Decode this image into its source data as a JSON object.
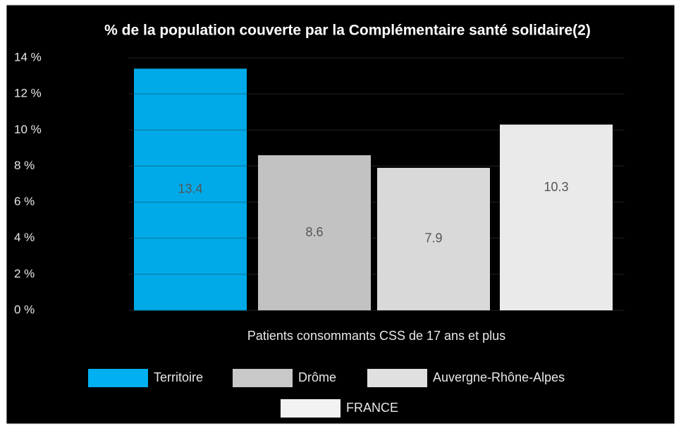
{
  "chart_data": {
    "type": "bar",
    "title": "% de la population couverte par la Complémentaire santé solidaire(2)",
    "categories": [
      "Patients consommants CSS de 17 ans et plus"
    ],
    "series": [
      {
        "name": "Territoire",
        "color": "#00b0f0",
        "values": [
          13.4
        ]
      },
      {
        "name": "Drôme",
        "color": "#c8c8c8",
        "values": [
          8.6
        ]
      },
      {
        "name": "Auvergne-Rhône-Alpes",
        "color": "#e0e0e0",
        "values": [
          7.9
        ]
      },
      {
        "name": "FRANCE",
        "color": "#f2f2f2",
        "values": [
          10.3
        ]
      }
    ],
    "ylim": [
      0,
      14
    ],
    "yticks": [
      {
        "value": 0,
        "label": "0 %"
      },
      {
        "value": 2,
        "label": "2 %"
      },
      {
        "value": 4,
        "label": "4 %"
      },
      {
        "value": 6,
        "label": "6 %"
      },
      {
        "value": 8,
        "label": "8 %"
      },
      {
        "value": 10,
        "label": "10 %"
      },
      {
        "value": 12,
        "label": "12 %"
      },
      {
        "value": 14,
        "label": "14 %"
      }
    ],
    "grid": true,
    "legend": "bottom"
  }
}
